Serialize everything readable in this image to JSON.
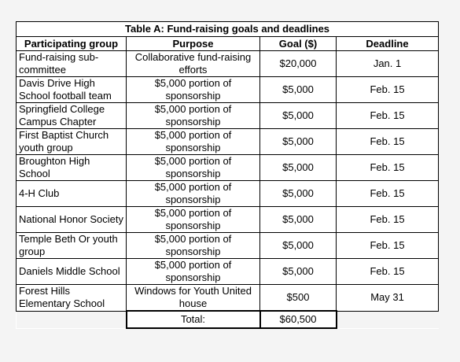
{
  "table": {
    "title": "Table A: Fund-raising goals and deadlines",
    "headers": {
      "group": "Participating group",
      "purpose": "Purpose",
      "goal": "Goal ($)",
      "deadline": "Deadline"
    },
    "rows": [
      {
        "group": "Fund-raising sub-committee",
        "purpose": "Collaborative fund-raising efforts",
        "goal": "$20,000",
        "deadline": "Jan. 1"
      },
      {
        "group": "Davis Drive High School football team",
        "purpose": "$5,000 portion of sponsorship",
        "goal": "$5,000",
        "deadline": "Feb. 15"
      },
      {
        "group": "Springfield College Campus Chapter",
        "purpose": "$5,000 portion of sponsorship",
        "goal": "$5,000",
        "deadline": "Feb. 15"
      },
      {
        "group": "First Baptist Church youth group",
        "purpose": "$5,000 portion of sponsorship",
        "goal": "$5,000",
        "deadline": "Feb. 15"
      },
      {
        "group": "Broughton High School",
        "purpose": "$5,000 portion of sponsorship",
        "goal": "$5,000",
        "deadline": "Feb. 15"
      },
      {
        "group": "4-H Club",
        "purpose": "$5,000 portion of sponsorship",
        "goal": "$5,000",
        "deadline": "Feb. 15"
      },
      {
        "group": "National Honor Society",
        "purpose": "$5,000 portion of sponsorship",
        "goal": "$5,000",
        "deadline": "Feb. 15"
      },
      {
        "group": "Temple Beth Or youth group",
        "purpose": "$5,000 portion of sponsorship",
        "goal": "$5,000",
        "deadline": "Feb. 15"
      },
      {
        "group": "Daniels Middle School",
        "purpose": "$5,000 portion of sponsorship",
        "goal": "$5,000",
        "deadline": "Feb. 15"
      },
      {
        "group": "Forest Hills Elementary School",
        "purpose": "Windows for Youth United house",
        "goal": "$500",
        "deadline": "May 31"
      }
    ],
    "total_label": "Total:",
    "total_value": "$60,500"
  }
}
